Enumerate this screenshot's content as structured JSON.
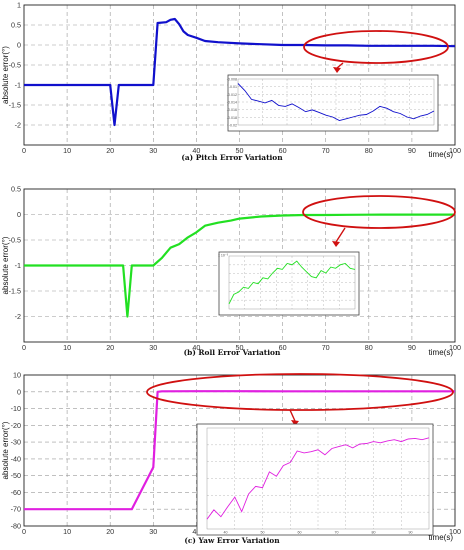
{
  "chart_data": [
    {
      "type": "line",
      "title": "(a) Pitch Error Variation",
      "xlabel": "time(s)",
      "ylabel": "absolute error(°)",
      "xlim": [
        0,
        100
      ],
      "ylim": [
        -2.5,
        1
      ],
      "xticks": [
        0,
        10,
        20,
        30,
        40,
        50,
        60,
        70,
        80,
        90,
        100
      ],
      "yticks": [
        1,
        0.5,
        0,
        -0.5,
        -1,
        -1.5,
        -2
      ],
      "ytick_labels": [
        "1",
        "0.5",
        "0",
        "-0.5",
        "-1",
        "-1.5",
        "-2"
      ],
      "grid": true,
      "color": "#1010cc",
      "series": [
        {
          "x": [
            0,
            20,
            21,
            22,
            30,
            31,
            33,
            34,
            35,
            36,
            37,
            38,
            40,
            42,
            45,
            50,
            55,
            60,
            65,
            70,
            75,
            80,
            85,
            90,
            95,
            100
          ],
          "y": [
            -1,
            -1,
            -2,
            -1,
            -1,
            0.55,
            0.57,
            0.63,
            0.65,
            0.52,
            0.34,
            0.25,
            0.18,
            0.1,
            0.07,
            0.04,
            0.02,
            0.0,
            0.0,
            -0.01,
            -0.01,
            -0.02,
            -0.02,
            -0.02,
            -0.02,
            -0.03
          ]
        }
      ],
      "annotation": "highlight ellipse over 60–100 s with zoomed inset",
      "inset": {
        "y_tick_labels": [
          "-0.008",
          "-0.01",
          "-0.012",
          "-0.014",
          "-0.016",
          "-0.018",
          "-0.02"
        ],
        "values": [
          -0.008,
          -0.01,
          -0.0125,
          -0.013,
          -0.0135,
          -0.0128,
          -0.0142,
          -0.0145,
          -0.0138,
          -0.0148,
          -0.016,
          -0.0155,
          -0.0162,
          -0.017,
          -0.0175,
          -0.0185,
          -0.018,
          -0.0175,
          -0.017,
          -0.0168,
          -0.0158,
          -0.0145,
          -0.015,
          -0.016,
          -0.0165,
          -0.0175,
          -0.018,
          -0.0172,
          -0.0168,
          -0.0158
        ]
      }
    },
    {
      "type": "line",
      "title": "(b) Roll Error Variation",
      "xlabel": "time(s)",
      "ylabel": "absolute error(°)",
      "xlim": [
        0,
        100
      ],
      "ylim": [
        -2.5,
        0.5
      ],
      "xticks": [
        0,
        10,
        20,
        30,
        40,
        50,
        60,
        70,
        80,
        90,
        100
      ],
      "yticks": [
        0.5,
        0,
        -0.5,
        -1,
        -1.5,
        -2
      ],
      "ytick_labels": [
        "0.5",
        "0",
        "-0.5",
        "-1",
        "-1.5",
        "-2"
      ],
      "grid": true,
      "color": "#22e022",
      "series": [
        {
          "x": [
            0,
            23,
            24,
            25,
            30,
            32,
            34,
            36,
            38,
            40,
            42,
            45,
            48,
            50,
            55,
            60,
            65,
            70,
            75,
            80,
            85,
            90,
            95,
            100
          ],
          "y": [
            -1,
            -1,
            -2,
            -1,
            -1,
            -0.85,
            -0.65,
            -0.58,
            -0.45,
            -0.35,
            -0.22,
            -0.16,
            -0.12,
            -0.08,
            -0.04,
            -0.02,
            -0.01,
            -0.01,
            -0.005,
            -0.003,
            -0.002,
            -0.002,
            -0.002,
            -0.002
          ]
        }
      ],
      "annotation": "highlight ellipse over 65–100 s with zoomed inset",
      "inset": {
        "y_tick_labels": [
          "x 10⁻³"
        ],
        "values": [
          -2.0,
          -1.6,
          -1.5,
          -1.3,
          -1.35,
          -1.1,
          -1.15,
          -0.9,
          -0.95,
          -0.7,
          -0.5,
          -0.55,
          -0.3,
          -0.35,
          -0.2,
          -0.45,
          -0.65,
          -0.85,
          -0.9,
          -0.6,
          -0.7,
          -0.45,
          -0.5,
          -0.35,
          -0.3,
          -0.5,
          -0.55
        ]
      }
    },
    {
      "type": "line",
      "title": "(c) Yaw Error Variation",
      "xlabel": "time(s)",
      "ylabel": "absolute error(°)",
      "xlim": [
        0,
        100
      ],
      "ylim": [
        -80,
        10
      ],
      "xticks": [
        0,
        10,
        20,
        30,
        40,
        50,
        60,
        70,
        80,
        90,
        100
      ],
      "yticks": [
        10,
        0,
        -10,
        -20,
        -30,
        -40,
        -50,
        -60,
        -70,
        -80
      ],
      "ytick_labels": [
        "10",
        "0",
        "-10",
        "-20",
        "-30",
        "-40",
        "-50",
        "-60",
        "-70",
        "-80"
      ],
      "grid": true,
      "color": "#e020e0",
      "series": [
        {
          "x": [
            0,
            25,
            30,
            31,
            32,
            40,
            50,
            60,
            70,
            80,
            90,
            100
          ],
          "y": [
            -70,
            -70,
            -45,
            0,
            0.3,
            0.35,
            0.32,
            0.3,
            0.3,
            0.3,
            0.3,
            0.3
          ]
        }
      ],
      "annotation": "highlight ellipse over 31–100 s with zoomed inset",
      "inset": {
        "x_tick_labels": [
          "40",
          "50",
          "60",
          "70",
          "80",
          "90"
        ],
        "values": [
          2.0,
          3.5,
          2.4,
          4.0,
          5.5,
          3.2,
          6.0,
          7.2,
          7.0,
          9.5,
          8.8,
          10.5,
          11.0,
          12.8,
          12.5,
          12.7,
          13.0,
          12.2,
          13.2,
          13.5,
          13.8,
          13.3,
          13.9,
          14.0,
          14.3,
          14.1,
          14.4,
          14.6,
          14.3,
          14.7,
          14.8,
          14.6,
          14.9
        ]
      }
    }
  ]
}
